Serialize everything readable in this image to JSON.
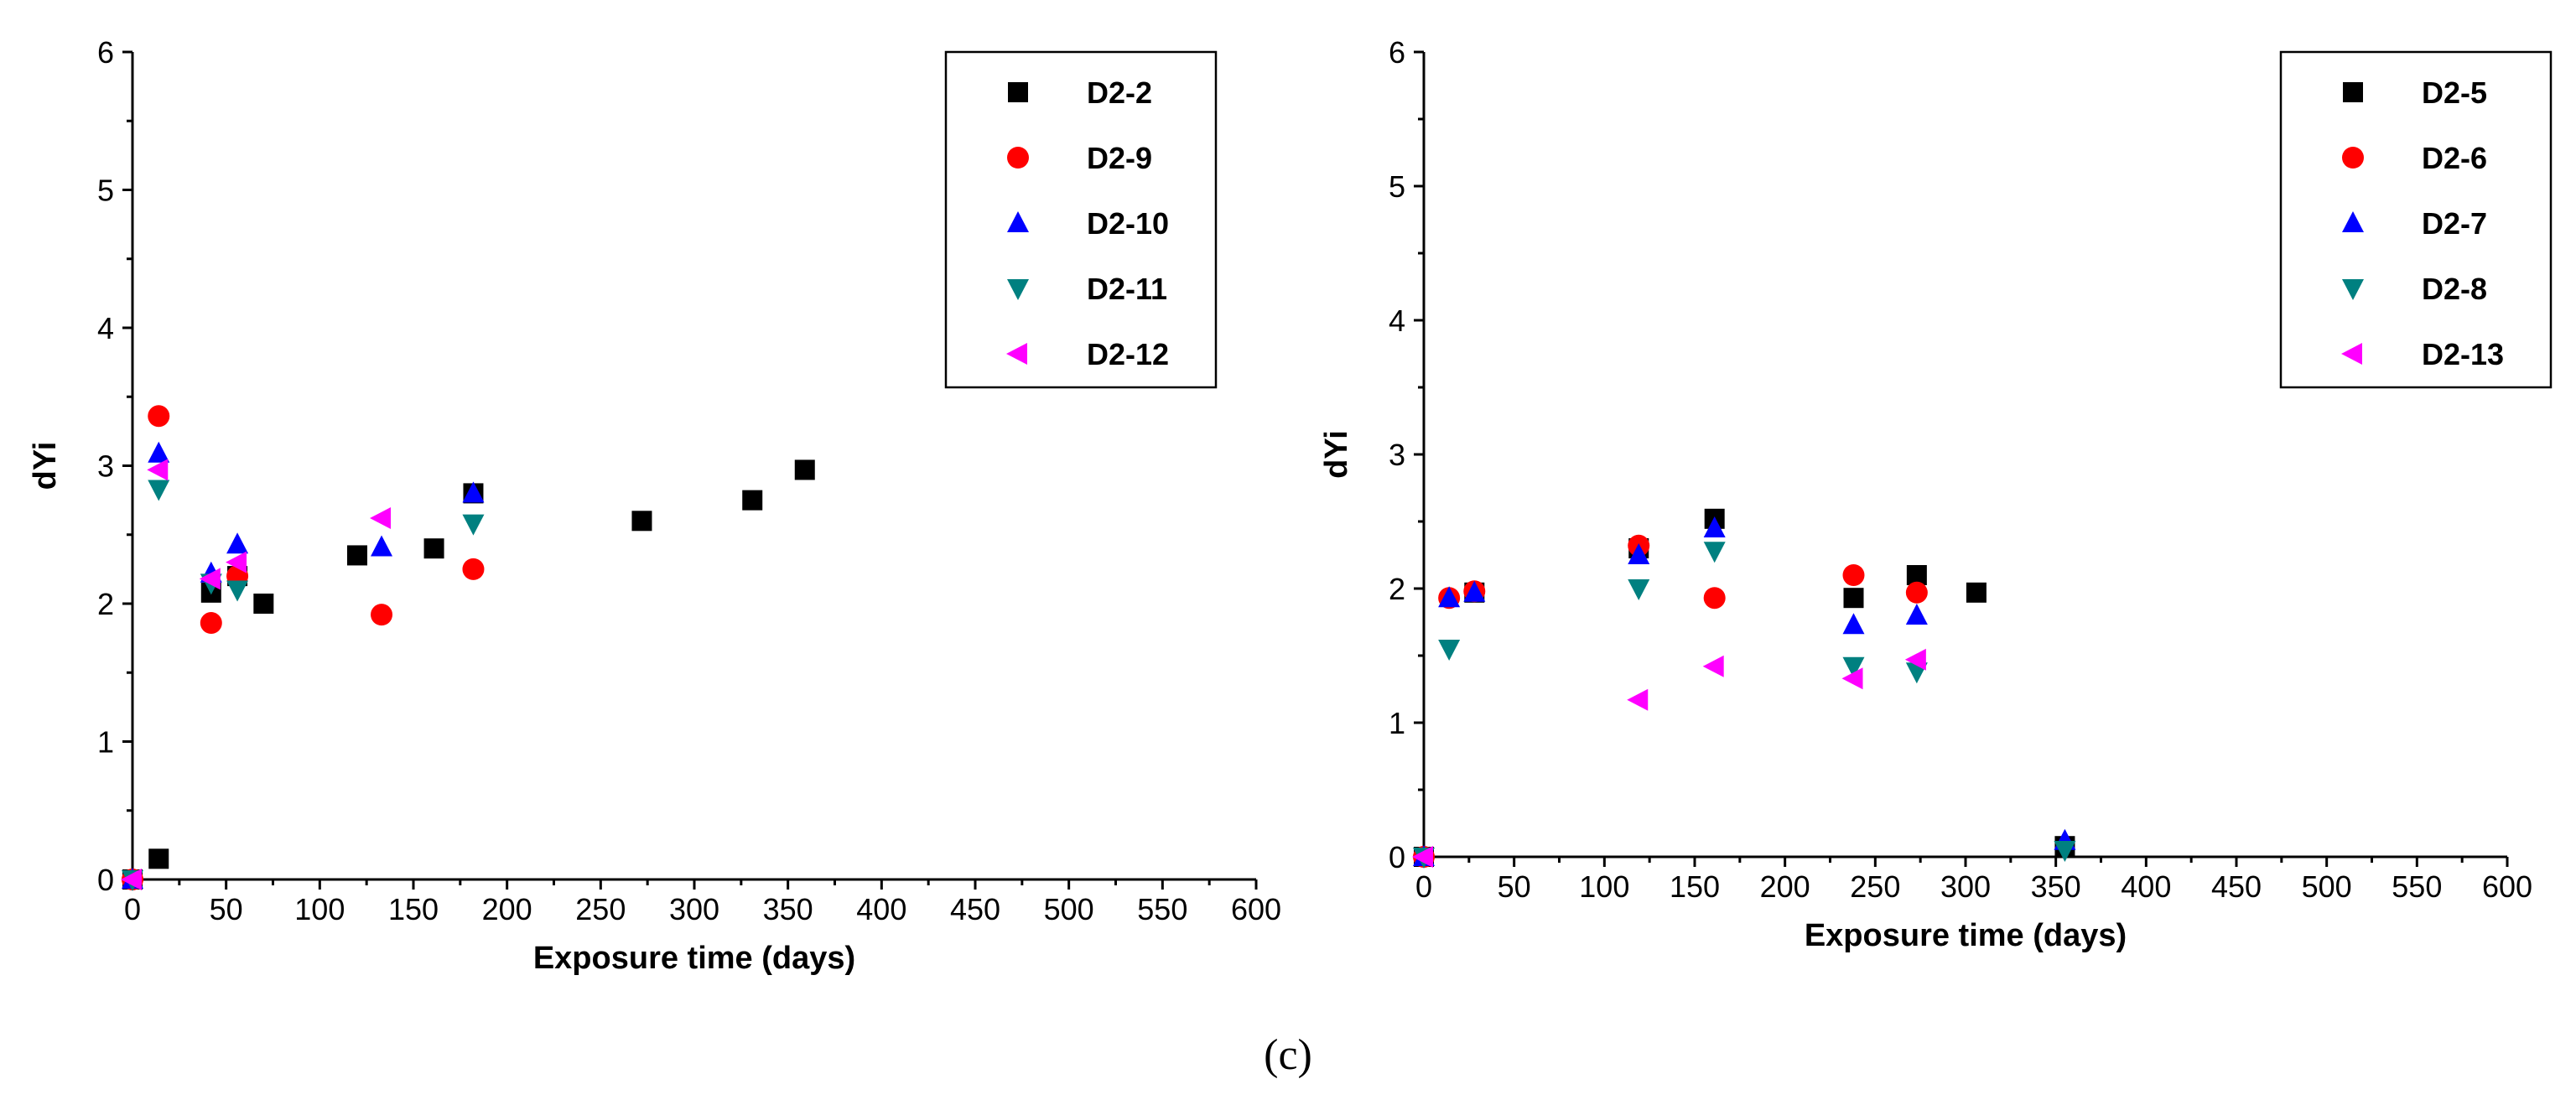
{
  "caption": "(c)",
  "colors": {
    "black": "#000000",
    "red": "#ff0000",
    "blue": "#0000ff",
    "teal": "#008080",
    "magenta": "#ff00ff"
  },
  "chart_data": [
    {
      "type": "scatter",
      "title": "",
      "xlabel": "Exposure time (days)",
      "ylabel": "dYi",
      "xlim": [
        0,
        600
      ],
      "ylim": [
        0,
        6
      ],
      "x_ticks": [
        0,
        50,
        100,
        150,
        200,
        250,
        300,
        350,
        400,
        450,
        500,
        550,
        600
      ],
      "y_ticks": [
        0,
        1,
        2,
        3,
        4,
        5,
        6
      ],
      "legend_position": "top-right",
      "series": [
        {
          "name": "D2-2",
          "marker": "square",
          "color": "#000000",
          "points": [
            [
              0,
              0
            ],
            [
              14,
              0.15
            ],
            [
              42,
              2.08
            ],
            [
              56,
              2.2
            ],
            [
              70,
              2.0
            ],
            [
              120,
              2.35
            ],
            [
              161,
              2.4
            ],
            [
              182,
              2.8
            ],
            [
              272,
              2.6
            ],
            [
              331,
              2.75
            ],
            [
              359,
              2.97
            ]
          ]
        },
        {
          "name": "D2-9",
          "marker": "circle",
          "color": "#ff0000",
          "points": [
            [
              0,
              0
            ],
            [
              14,
              3.36
            ],
            [
              42,
              1.86
            ],
            [
              56,
              2.2
            ],
            [
              133,
              1.92
            ],
            [
              182,
              2.25
            ]
          ]
        },
        {
          "name": "D2-10",
          "marker": "triangle-up",
          "color": "#0000ff",
          "points": [
            [
              0,
              0
            ],
            [
              14,
              3.09
            ],
            [
              42,
              2.22
            ],
            [
              56,
              2.43
            ],
            [
              133,
              2.41
            ],
            [
              182,
              2.8
            ]
          ]
        },
        {
          "name": "D2-11",
          "marker": "triangle-down",
          "color": "#008080",
          "points": [
            [
              0,
              0
            ],
            [
              14,
              2.83
            ],
            [
              42,
              2.15
            ],
            [
              56,
              2.1
            ],
            [
              182,
              2.58
            ]
          ]
        },
        {
          "name": "D2-12",
          "marker": "triangle-left",
          "color": "#ff00ff",
          "points": [
            [
              0,
              0
            ],
            [
              14,
              2.97
            ],
            [
              42,
              2.18
            ],
            [
              56,
              2.3
            ],
            [
              133,
              2.62
            ]
          ]
        }
      ]
    },
    {
      "type": "scatter",
      "title": "",
      "xlabel": "Exposure time (days)",
      "ylabel": "dYi",
      "xlim": [
        0,
        600
      ],
      "ylim": [
        0,
        6
      ],
      "x_ticks": [
        0,
        50,
        100,
        150,
        200,
        250,
        300,
        350,
        400,
        450,
        500,
        550,
        600
      ],
      "y_ticks": [
        0,
        1,
        2,
        3,
        4,
        5,
        6
      ],
      "legend_position": "top-right",
      "series": [
        {
          "name": "D2-5",
          "marker": "square",
          "color": "#000000",
          "points": [
            [
              0,
              0
            ],
            [
              28,
              1.97
            ],
            [
              119,
              2.3
            ],
            [
              161,
              2.52
            ],
            [
              238,
              1.93
            ],
            [
              273,
              2.1
            ],
            [
              306,
              1.97
            ],
            [
              355,
              0.08
            ]
          ]
        },
        {
          "name": "D2-6",
          "marker": "circle",
          "color": "#ff0000",
          "points": [
            [
              0,
              0
            ],
            [
              14,
              1.93
            ],
            [
              28,
              1.98
            ],
            [
              119,
              2.32
            ],
            [
              161,
              1.93
            ],
            [
              238,
              2.1
            ],
            [
              273,
              1.97
            ]
          ]
        },
        {
          "name": "D2-7",
          "marker": "triangle-up",
          "color": "#0000ff",
          "points": [
            [
              0,
              0
            ],
            [
              14,
              1.93
            ],
            [
              28,
              1.97
            ],
            [
              119,
              2.25
            ],
            [
              161,
              2.45
            ],
            [
              238,
              1.73
            ],
            [
              273,
              1.8
            ],
            [
              355,
              0.12
            ]
          ]
        },
        {
          "name": "D2-8",
          "marker": "triangle-down",
          "color": "#008080",
          "points": [
            [
              0,
              0
            ],
            [
              14,
              1.55
            ],
            [
              119,
              2.0
            ],
            [
              161,
              2.28
            ],
            [
              238,
              1.42
            ],
            [
              273,
              1.38
            ],
            [
              355,
              0.05
            ]
          ]
        },
        {
          "name": "D2-13",
          "marker": "triangle-left",
          "color": "#ff00ff",
          "points": [
            [
              0,
              0
            ],
            [
              119,
              1.17
            ],
            [
              161,
              1.42
            ],
            [
              238,
              1.33
            ],
            [
              273,
              1.47
            ]
          ]
        }
      ]
    }
  ]
}
